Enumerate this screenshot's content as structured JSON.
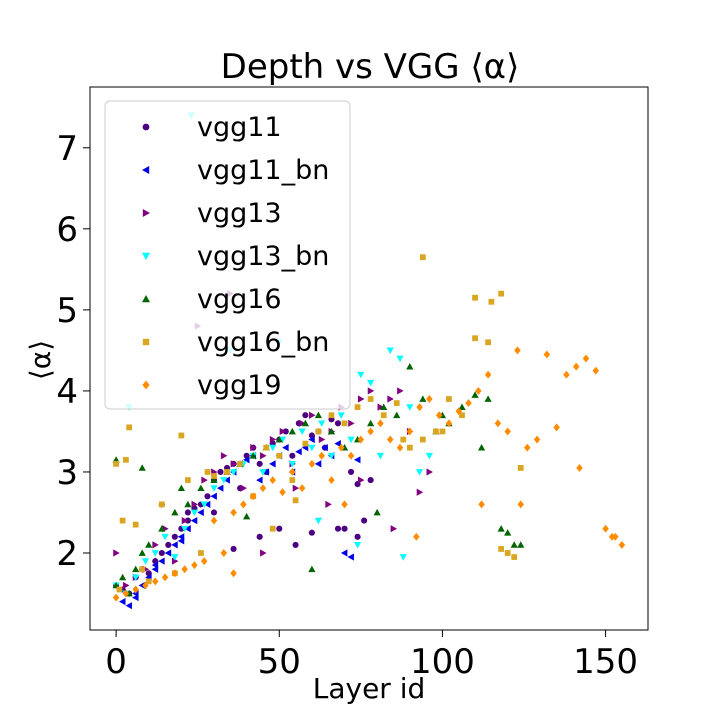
{
  "chart_data": {
    "type": "scatter",
    "title": "Depth vs VGG ⟨α⟩",
    "xlabel": "Layer id",
    "ylabel": "⟨α⟩",
    "xlim": [
      -8,
      163
    ],
    "ylim": [
      1.05,
      7.75
    ],
    "xticks": [
      0,
      50,
      100,
      150
    ],
    "yticks": [
      2,
      3,
      4,
      5,
      6,
      7
    ],
    "grid": false,
    "legend_position": "upper-left",
    "series": [
      {
        "name": "vgg11",
        "color": "#4b0082",
        "marker": "circle",
        "x": [
          0,
          2,
          4,
          6,
          8,
          10,
          12,
          14,
          16,
          18,
          20,
          22,
          24,
          26,
          28,
          30,
          32,
          34,
          36,
          38,
          40,
          42,
          44,
          46,
          48,
          50,
          52,
          54,
          56,
          58,
          60,
          62,
          64,
          66,
          68,
          70,
          72,
          74,
          76,
          78,
          14,
          22,
          30,
          44,
          50,
          55,
          60,
          68,
          74,
          36
        ],
        "y": [
          1.6,
          1.55,
          1.5,
          1.7,
          1.8,
          1.75,
          1.9,
          2.0,
          2.1,
          2.2,
          2.3,
          2.5,
          2.55,
          2.6,
          2.7,
          2.9,
          3.0,
          3.05,
          3.1,
          2.8,
          3.2,
          3.3,
          3.1,
          3.0,
          3.35,
          3.4,
          3.5,
          3.2,
          3.6,
          3.7,
          3.45,
          3.5,
          3.3,
          3.65,
          3.6,
          2.3,
          3.0,
          2.85,
          2.4,
          2.9,
          2.6,
          2.4,
          2.5,
          2.2,
          2.3,
          2.1,
          2.25,
          2.3,
          2.2,
          2.05
        ]
      },
      {
        "name": "vgg11_bn",
        "color": "#0000e6",
        "marker": "triangle-left",
        "x": [
          2,
          4,
          6,
          8,
          10,
          12,
          14,
          16,
          18,
          20,
          22,
          24,
          26,
          28,
          30,
          32,
          34,
          36,
          38,
          40,
          42,
          44,
          46,
          48,
          50,
          52,
          54,
          56,
          58,
          60,
          62,
          64,
          66,
          68,
          70,
          72,
          74,
          6,
          12,
          20
        ],
        "y": [
          1.4,
          1.35,
          1.5,
          1.6,
          1.7,
          1.8,
          1.9,
          2.0,
          2.1,
          2.2,
          2.3,
          2.4,
          2.5,
          2.6,
          2.7,
          2.8,
          2.9,
          3.0,
          3.1,
          3.15,
          3.2,
          2.9,
          3.0,
          3.1,
          3.2,
          3.3,
          3.0,
          3.25,
          3.3,
          3.4,
          3.1,
          3.3,
          3.2,
          3.35,
          2.0,
          1.95,
          3.15,
          1.45,
          1.85,
          2.15
        ]
      },
      {
        "name": "vgg13",
        "color": "#800080",
        "marker": "triangle-right",
        "x": [
          0,
          3,
          6,
          9,
          12,
          15,
          18,
          21,
          24,
          27,
          30,
          33,
          36,
          39,
          42,
          45,
          48,
          51,
          54,
          57,
          60,
          63,
          66,
          69,
          72,
          75,
          78,
          81,
          84,
          87,
          90,
          93,
          96,
          25,
          35,
          45,
          55,
          65,
          75,
          85
        ],
        "y": [
          2.0,
          1.6,
          1.7,
          1.8,
          2.1,
          2.3,
          1.9,
          2.4,
          2.6,
          2.9,
          3.0,
          3.2,
          3.1,
          2.8,
          3.3,
          3.2,
          3.4,
          3.5,
          3.1,
          3.6,
          3.7,
          3.4,
          3.5,
          3.8,
          3.6,
          3.9,
          4.0,
          3.8,
          3.9,
          4.0,
          3.5,
          2.75,
          3.0,
          4.8,
          5.2,
          2.0,
          2.8,
          2.6,
          2.9,
          2.3
        ]
      },
      {
        "name": "vgg13_bn",
        "color": "#00ffff",
        "marker": "triangle-down",
        "x": [
          0,
          3,
          6,
          9,
          12,
          15,
          18,
          21,
          24,
          27,
          30,
          33,
          36,
          39,
          42,
          45,
          48,
          51,
          54,
          57,
          60,
          63,
          66,
          69,
          72,
          75,
          78,
          81,
          84,
          87,
          90,
          93,
          96,
          23,
          4,
          35,
          50,
          62,
          74,
          88
        ],
        "y": [
          1.6,
          1.5,
          1.7,
          1.9,
          2.0,
          2.2,
          1.95,
          2.3,
          2.5,
          2.6,
          2.8,
          2.9,
          3.0,
          3.1,
          3.2,
          3.0,
          3.3,
          3.4,
          3.1,
          3.5,
          3.3,
          3.6,
          3.2,
          3.7,
          3.4,
          4.2,
          4.1,
          3.2,
          4.5,
          4.4,
          3.8,
          3.0,
          3.2,
          7.4,
          3.8,
          4.5,
          4.6,
          2.4,
          2.1,
          1.95
        ]
      },
      {
        "name": "vgg16",
        "color": "#006400",
        "marker": "triangle-up",
        "x": [
          0,
          2,
          4,
          6,
          8,
          10,
          14,
          18,
          22,
          26,
          30,
          34,
          38,
          42,
          46,
          50,
          54,
          58,
          62,
          66,
          70,
          74,
          78,
          82,
          86,
          90,
          94,
          98,
          102,
          106,
          110,
          114,
          118,
          122,
          124,
          0,
          8,
          20,
          40,
          60,
          80,
          100,
          112,
          120
        ],
        "y": [
          1.6,
          1.7,
          1.5,
          1.8,
          2.0,
          2.1,
          2.3,
          2.5,
          2.6,
          2.8,
          2.9,
          3.0,
          3.1,
          3.2,
          3.3,
          3.4,
          3.5,
          3.6,
          3.7,
          3.5,
          3.3,
          3.4,
          3.6,
          3.8,
          3.7,
          4.3,
          3.9,
          3.5,
          3.6,
          3.8,
          3.95,
          3.9,
          2.3,
          2.1,
          2.1,
          3.15,
          3.05,
          2.8,
          2.45,
          1.8,
          2.5,
          3.7,
          3.3,
          2.25
        ]
      },
      {
        "name": "vgg16_bn",
        "color": "#daa520",
        "marker": "square",
        "x": [
          0,
          2,
          4,
          6,
          8,
          10,
          14,
          18,
          22,
          26,
          30,
          34,
          38,
          42,
          46,
          50,
          54,
          58,
          62,
          66,
          70,
          74,
          78,
          82,
          86,
          90,
          94,
          98,
          102,
          106,
          110,
          114,
          118,
          122,
          124,
          1,
          3,
          20,
          28,
          48,
          55,
          94,
          110,
          115,
          118,
          100,
          88,
          120
        ],
        "y": [
          3.1,
          2.4,
          3.55,
          2.35,
          1.8,
          1.65,
          2.6,
          1.75,
          2.9,
          2.0,
          2.95,
          3.0,
          3.1,
          2.7,
          3.3,
          3.2,
          2.9,
          3.35,
          3.5,
          3.7,
          3.6,
          3.8,
          3.9,
          3.7,
          3.85,
          3.3,
          5.65,
          3.5,
          3.9,
          3.7,
          4.65,
          4.6,
          2.05,
          1.95,
          3.05,
          1.55,
          3.15,
          3.45,
          3.0,
          2.3,
          2.65,
          3.4,
          5.15,
          5.1,
          5.2,
          3.5,
          3.4,
          2.0
        ]
      },
      {
        "name": "vgg19",
        "color": "#ff8c00",
        "marker": "diamond",
        "x": [
          0,
          3,
          6,
          9,
          12,
          15,
          18,
          21,
          24,
          27,
          30,
          33,
          36,
          39,
          42,
          45,
          48,
          51,
          54,
          57,
          60,
          63,
          66,
          69,
          72,
          75,
          78,
          81,
          84,
          87,
          90,
          93,
          96,
          99,
          102,
          105,
          108,
          111,
          114,
          117,
          120,
          123,
          126,
          129,
          132,
          135,
          138,
          141,
          144,
          147,
          150,
          153,
          155,
          36,
          70,
          92,
          112,
          124,
          142,
          152
        ],
        "y": [
          1.45,
          1.5,
          1.55,
          1.6,
          1.65,
          1.7,
          1.75,
          1.8,
          1.85,
          1.9,
          2.4,
          2.0,
          2.5,
          2.6,
          2.7,
          2.8,
          2.9,
          2.75,
          3.0,
          2.8,
          3.1,
          3.2,
          2.9,
          3.3,
          3.2,
          3.4,
          3.5,
          3.6,
          3.4,
          3.3,
          3.5,
          3.8,
          3.9,
          3.7,
          3.6,
          3.75,
          3.85,
          4.0,
          4.2,
          3.6,
          3.5,
          4.5,
          3.3,
          3.4,
          4.45,
          3.55,
          4.2,
          4.3,
          4.4,
          4.25,
          2.3,
          2.2,
          2.1,
          1.75,
          2.6,
          2.2,
          2.6,
          2.6,
          3.05,
          2.2
        ]
      }
    ]
  }
}
